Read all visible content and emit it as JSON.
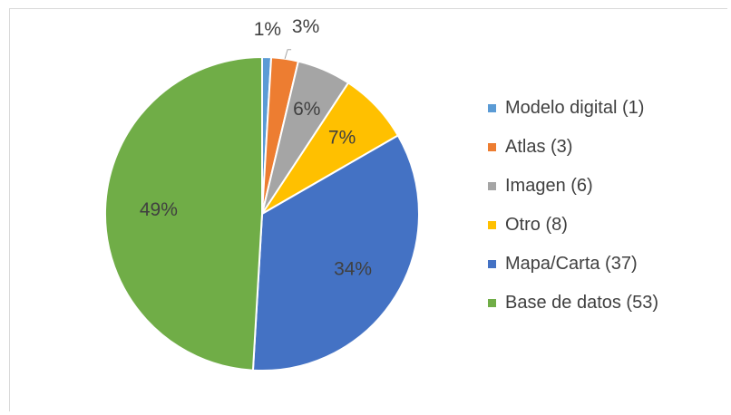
{
  "chart_data": {
    "type": "pie",
    "title": "",
    "slices": [
      {
        "label": "Modelo digital (1)",
        "value": 1,
        "percent_label": "1%",
        "color": "#5b9bd5"
      },
      {
        "label": "Atlas (3)",
        "value": 3,
        "percent_label": "3%",
        "color": "#ed7d31"
      },
      {
        "label": "Imagen (6)",
        "value": 6,
        "percent_label": "6%",
        "color": "#a5a5a5"
      },
      {
        "label": "Otro (8)",
        "value": 8,
        "percent_label": "7%",
        "color": "#ffc000"
      },
      {
        "label": "Mapa/Carta (37)",
        "value": 37,
        "percent_label": "34%",
        "color": "#4472c4"
      },
      {
        "label": "Base de datos (53)",
        "value": 53,
        "percent_label": "49%",
        "color": "#70ad47"
      }
    ],
    "legend_position": "right"
  }
}
